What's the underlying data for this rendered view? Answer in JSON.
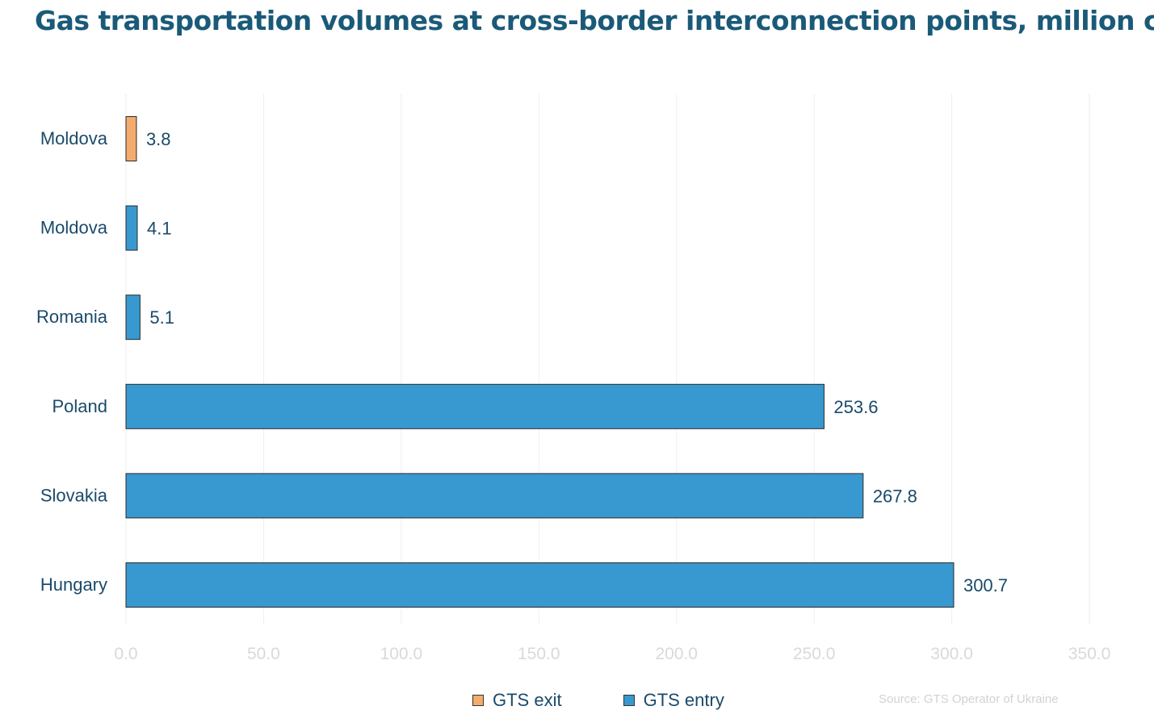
{
  "title": "Gas transportation volumes at cross-border interconnection points, million cm",
  "source": "Source: GTS Operator of Ukraine",
  "colors": {
    "exit": "#f4ac6e",
    "entry": "#3899d0",
    "title": "#1a5a78",
    "category_label": "#1a4a6a",
    "tick_label": "#d6dadd",
    "gridline": "#eeeeee"
  },
  "legend": [
    {
      "label": "GTS exit",
      "color": "#f4ac6e"
    },
    {
      "label": "GTS entry",
      "color": "#3899d0"
    }
  ],
  "chart_data": {
    "type": "bar",
    "orientation": "horizontal",
    "title": "Gas transportation volumes at cross-border interconnection points, million cm",
    "xlabel": "",
    "ylabel": "",
    "xlim": [
      0,
      350
    ],
    "xticks": [
      "0.0",
      "50.0",
      "100.0",
      "150.0",
      "200.0",
      "250.0",
      "300.0",
      "350.0"
    ],
    "grid": true,
    "legend_position": "bottom",
    "categories": [
      "Moldova",
      "Moldova",
      "Romania",
      "Poland",
      "Slovakia",
      "Hungary"
    ],
    "values": [
      3.8,
      4.1,
      5.1,
      253.6,
      267.8,
      300.7
    ],
    "value_labels": [
      "3.8",
      "4.1",
      "5.1",
      "253.6",
      "267.8",
      "300.7"
    ],
    "series_of_bar": [
      "GTS exit",
      "GTS entry",
      "GTS entry",
      "GTS entry",
      "GTS entry",
      "GTS entry"
    ]
  }
}
